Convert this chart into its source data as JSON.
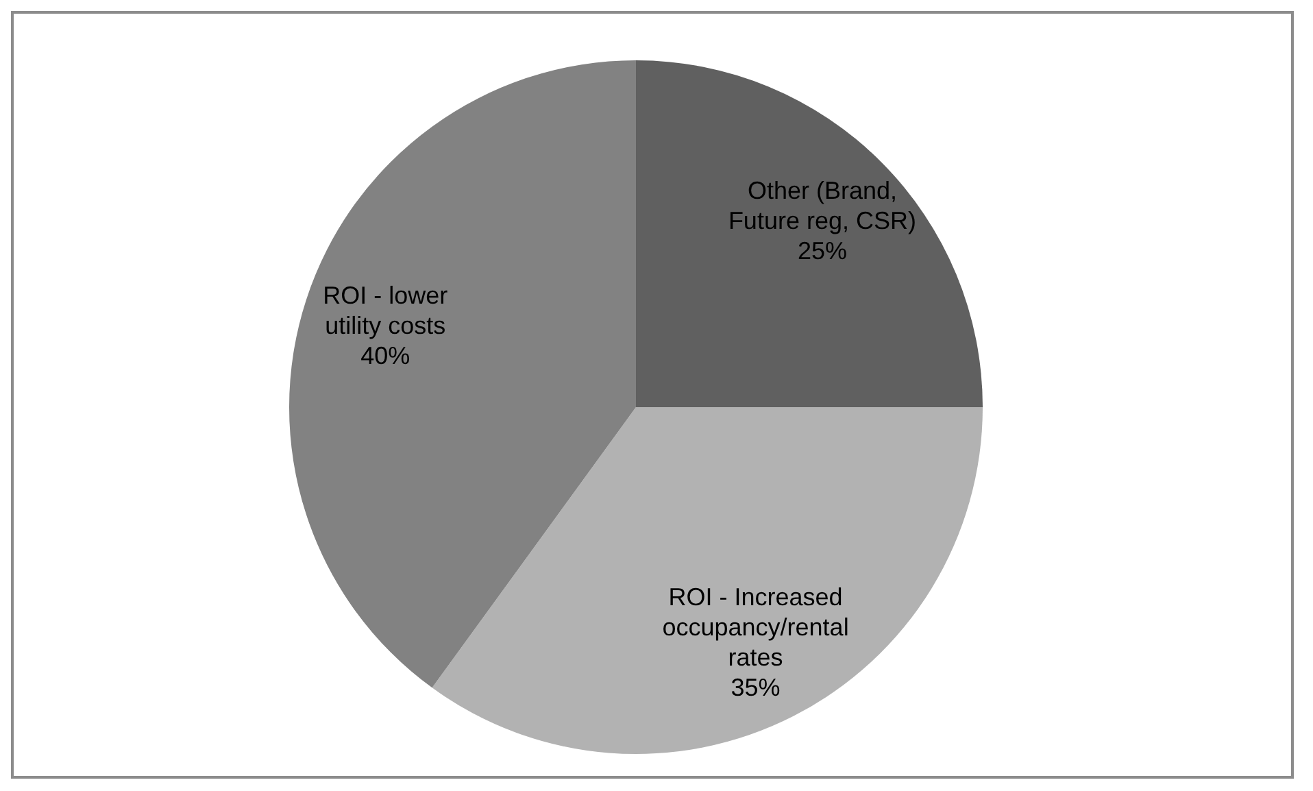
{
  "chart_data": {
    "type": "pie",
    "categories": [
      "Other (Brand, Future reg, CSR)",
      "ROI - Increased occupancy/rental rates",
      "ROI - lower utility costs"
    ],
    "values": [
      25,
      35,
      40
    ],
    "value_labels": [
      "25%",
      "35%",
      "40%"
    ],
    "colors": [
      "#606060",
      "#b2b2b2",
      "#828282"
    ]
  }
}
